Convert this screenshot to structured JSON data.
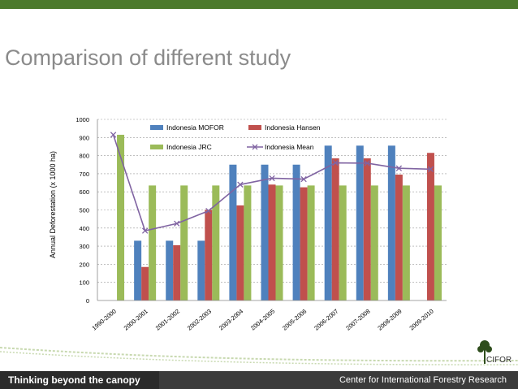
{
  "slide": {
    "title": "Comparison of different study",
    "footer_left": "Thinking beyond the canopy",
    "footer_right": "Center for International Forestry Research",
    "logo_text": "CIFOR"
  },
  "colors": {
    "band": "#4c7a2c",
    "mofor": "#4f81bd",
    "hansen": "#c0504d",
    "jrc": "#9bbb59",
    "mean": "#8064a2"
  },
  "chart_data": {
    "type": "bar",
    "ylabel": "Annual Deforestation (x 1000 ha)",
    "ylim": [
      0,
      1000
    ],
    "yticks": [
      "0",
      "100",
      "200",
      "300",
      "400",
      "500",
      "600",
      "700",
      "800",
      "900",
      "1000"
    ],
    "categories": [
      "1990-2000",
      "2000-2001",
      "2001-2002",
      "2002-2003",
      "2003-2004",
      "2004-2005",
      "2005-2006",
      "2006-2007",
      "2007-2008",
      "2008-2009",
      "2009-2010"
    ],
    "legend_position": "top-center",
    "grid": true,
    "series": [
      {
        "name": "Indonesia MOFOR",
        "kind": "bar",
        "color": "#4f81bd",
        "values": [
          null,
          330,
          330,
          330,
          750,
          750,
          750,
          855,
          855,
          855,
          null
        ]
      },
      {
        "name": "Indonesia Hansen",
        "kind": "bar",
        "color": "#c0504d",
        "values": [
          null,
          185,
          305,
          500,
          525,
          640,
          625,
          785,
          785,
          695,
          815
        ]
      },
      {
        "name": "Indonesia JRC",
        "kind": "bar",
        "color": "#9bbb59",
        "values": [
          915,
          635,
          635,
          635,
          635,
          635,
          635,
          635,
          635,
          635,
          635
        ]
      },
      {
        "name": "Indonesia Mean",
        "kind": "line",
        "color": "#8064a2",
        "values": [
          915,
          385,
          425,
          495,
          640,
          675,
          670,
          760,
          758,
          730,
          725
        ]
      }
    ]
  }
}
